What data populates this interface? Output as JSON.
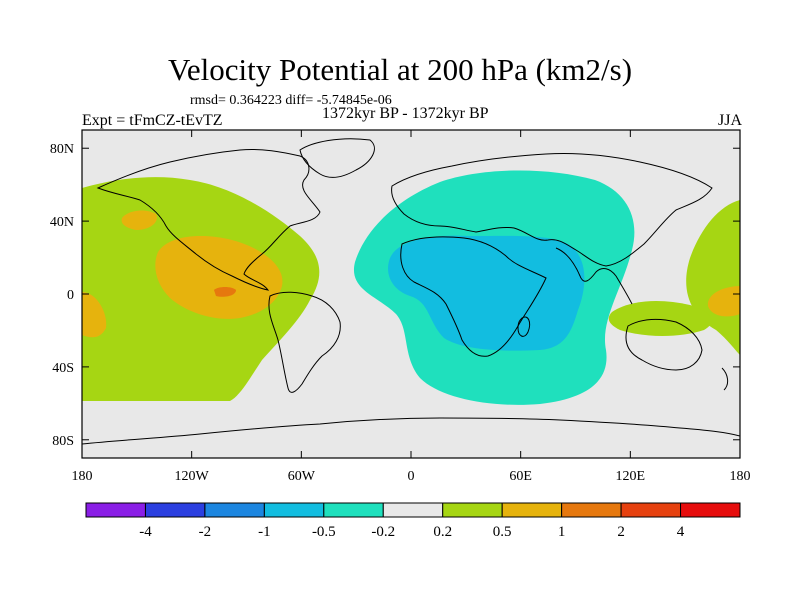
{
  "header": {
    "title": "Velocity Potential at 200 hPa (km2/s)",
    "stats": "rmsd= 0.364223 diff= -5.74845e-06",
    "experiment": "Expt = tFmCZ-tEvTZ",
    "period": "1372kyr BP - 1372kyr BP",
    "season": "JJA"
  },
  "map": {
    "lat_ticks": [
      "80N",
      "40N",
      "0",
      "40S",
      "80S"
    ],
    "lon_ticks": [
      "180",
      "120W",
      "60W",
      "0",
      "60E",
      "120E",
      "180"
    ],
    "lat_range": [
      -90,
      90
    ],
    "lon_range": [
      -180,
      180
    ]
  },
  "colorbar": {
    "colors": [
      "#8a1ee6",
      "#2b3fe0",
      "#1c86e0",
      "#12bde0",
      "#1fe0bd",
      "#e8e8e8",
      "#a6d613",
      "#e6b30d",
      "#e6780e",
      "#e6410f",
      "#e60d0d"
    ],
    "labels": [
      "-4",
      "-2",
      "-1",
      "-0.5",
      "-0.2",
      "0.2",
      "0.5",
      "1",
      "2",
      "4"
    ]
  },
  "fields": {
    "background": "#e8e8e8",
    "positive_low": "#a6d613",
    "positive_mid": "#e6b30d",
    "positive_high": "#e6780e",
    "negative_low": "#1fe0bd",
    "negative_mid": "#12bde0"
  }
}
